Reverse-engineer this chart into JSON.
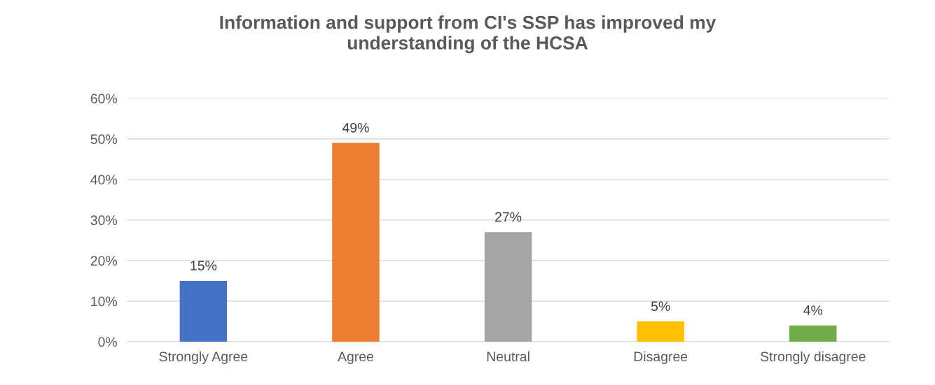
{
  "chart_data": {
    "type": "bar",
    "title": "Information and support from CI's SSP has improved my\nunderstanding of the HCSA",
    "categories": [
      "Strongly Agree",
      "Agree",
      "Neutral",
      "Disagree",
      "Strongly disagree"
    ],
    "values": [
      15,
      49,
      27,
      5,
      4
    ],
    "colors": [
      "#4472c4",
      "#ed7d31",
      "#a5a5a5",
      "#ffc000",
      "#70ad47"
    ],
    "data_labels": true,
    "value_labels": [
      "15%",
      "49%",
      "27%",
      "5%",
      "4%"
    ],
    "ylim": [
      0,
      60
    ],
    "yticks": [
      {
        "value": 0,
        "label": "0%"
      },
      {
        "value": 10,
        "label": "10%"
      },
      {
        "value": 20,
        "label": "20%"
      },
      {
        "value": 30,
        "label": "30%"
      },
      {
        "value": 40,
        "label": "40%"
      },
      {
        "value": 50,
        "label": "50%"
      },
      {
        "value": 60,
        "label": "60%"
      }
    ],
    "grid": "y",
    "legend": false
  }
}
